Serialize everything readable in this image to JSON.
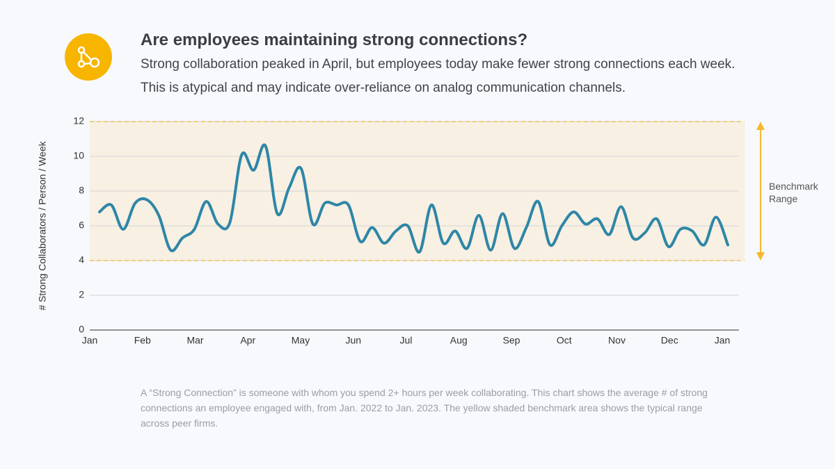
{
  "header": {
    "title": "Are employees maintaining strong connections?",
    "subtitle": "Strong collaboration peaked in April, but employees today make fewer strong connections each week. This is atypical and may indicate over-reliance on analog communication channels."
  },
  "chart_data": {
    "type": "line",
    "y_label": "# Strong Collaborators / Person / Week",
    "x_tick_labels": [
      "Jan",
      "Feb",
      "Mar",
      "Apr",
      "May",
      "Jun",
      "Jul",
      "Aug",
      "Sep",
      "Oct",
      "Nov",
      "Dec",
      "Jan"
    ],
    "values": [
      6.8,
      7.2,
      5.8,
      7.3,
      7.5,
      6.6,
      4.6,
      5.3,
      5.8,
      7.4,
      6.1,
      6.2,
      10.1,
      9.2,
      10.6,
      6.7,
      8.2,
      9.3,
      6.1,
      7.3,
      7.2,
      7.2,
      5.1,
      5.9,
      5.0,
      5.7,
      6.0,
      4.5,
      7.2,
      5.0,
      5.7,
      4.7,
      6.6,
      4.6,
      6.7,
      4.7,
      5.9,
      7.4,
      4.9,
      6.0,
      6.8,
      6.1,
      6.4,
      5.5,
      7.1,
      5.3,
      5.6,
      6.4,
      4.8,
      5.8,
      5.7,
      4.9,
      6.5,
      4.9
    ],
    "color": "#2e86a6",
    "ylim": [
      0,
      12
    ],
    "yticks": [
      0,
      2,
      4,
      6,
      8,
      10,
      12
    ],
    "grid": true,
    "benchmark": [
      4,
      12
    ],
    "benchmark_color": "#f5b82e",
    "benchmark_label": "Benchmark Range"
  },
  "footnote": "A “Strong Connection” is someone with whom you spend 2+ hours per week collaborating. This chart shows the average # of strong connections an employee engaged with, from Jan. 2022 to Jan. 2023. The yellow shaded benchmark area shows the typical range across peer firms."
}
